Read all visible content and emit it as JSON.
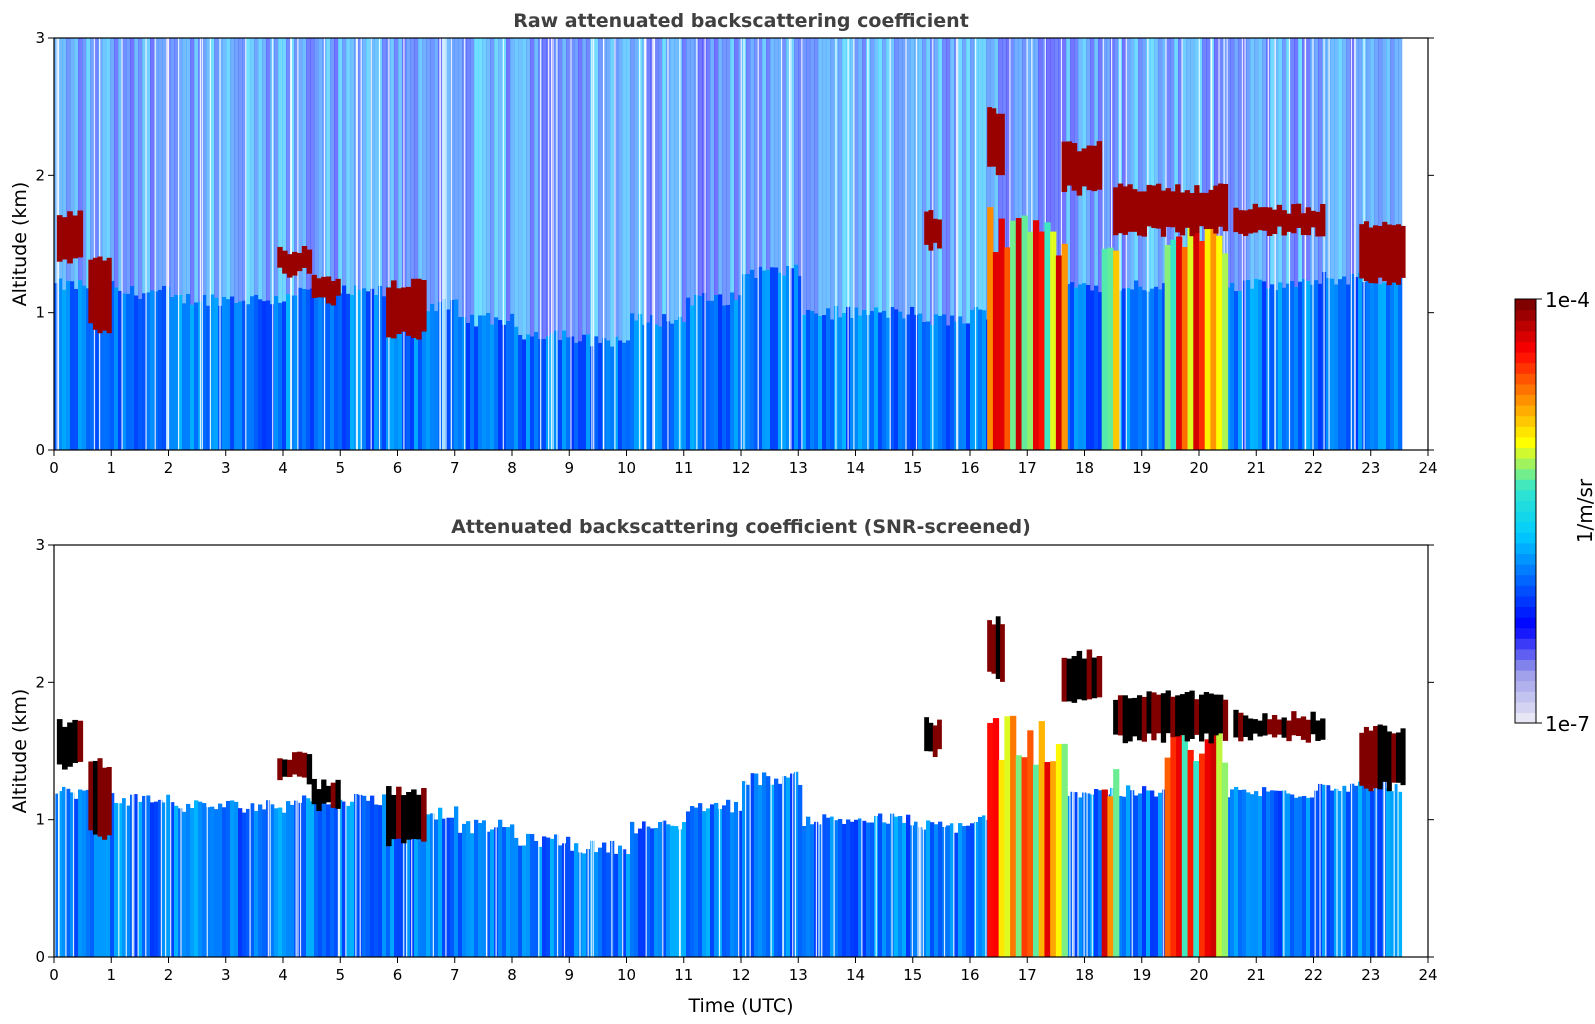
{
  "chart_data": [
    {
      "type": "heatmap",
      "title": "Raw attenuated backscattering coefficient",
      "xlabel": "",
      "ylabel": "Altitude (km)",
      "xlim": [
        0,
        24
      ],
      "ylim": [
        0,
        3
      ],
      "x_ticks": [
        "0",
        "1",
        "2",
        "3",
        "4",
        "5",
        "6",
        "7",
        "8",
        "9",
        "10",
        "11",
        "12",
        "13",
        "14",
        "15",
        "16",
        "17",
        "18",
        "19",
        "20",
        "21",
        "22",
        "23",
        "24"
      ],
      "y_ticks": [
        "0",
        "1",
        "2",
        "3"
      ],
      "data_end_hour": 23.6,
      "screened": false,
      "cloud_features": [
        {
          "t_start": 0.05,
          "t_end": 0.5,
          "alt_base": 1.35,
          "alt_top": 1.75
        },
        {
          "t_start": 0.6,
          "t_end": 1.0,
          "alt_base": 0.85,
          "alt_top": 1.45
        },
        {
          "t_start": 3.9,
          "t_end": 4.5,
          "alt_base": 1.25,
          "alt_top": 1.5
        },
        {
          "t_start": 4.5,
          "t_end": 5.0,
          "alt_base": 1.05,
          "alt_top": 1.3
        },
        {
          "t_start": 5.8,
          "t_end": 6.5,
          "alt_base": 0.8,
          "alt_top": 1.25
        },
        {
          "t_start": 15.2,
          "t_end": 15.5,
          "alt_base": 1.45,
          "alt_top": 1.75
        },
        {
          "t_start": 16.3,
          "t_end": 16.6,
          "alt_base": 2.0,
          "alt_top": 2.5
        },
        {
          "t_start": 17.6,
          "t_end": 18.3,
          "alt_base": 1.85,
          "alt_top": 2.25
        },
        {
          "t_start": 18.5,
          "t_end": 20.5,
          "alt_base": 1.55,
          "alt_top": 1.95
        },
        {
          "t_start": 20.6,
          "t_end": 22.2,
          "alt_base": 1.55,
          "alt_top": 1.8
        },
        {
          "t_start": 22.8,
          "t_end": 23.6,
          "alt_base": 1.2,
          "alt_top": 1.7
        }
      ],
      "precipitation_features": [
        {
          "t_start": 16.3,
          "t_end": 17.7,
          "alt_top": 1.8
        },
        {
          "t_start": 18.3,
          "t_end": 18.6,
          "alt_top": 1.5
        },
        {
          "t_start": 19.4,
          "t_end": 20.5,
          "alt_top": 1.8
        }
      ]
    },
    {
      "type": "heatmap",
      "title": "Attenuated backscattering coefficient (SNR-screened)",
      "xlabel": "Time (UTC)",
      "ylabel": "Altitude (km)",
      "xlim": [
        0,
        24
      ],
      "ylim": [
        0,
        3
      ],
      "x_ticks": [
        "0",
        "1",
        "2",
        "3",
        "4",
        "5",
        "6",
        "7",
        "8",
        "9",
        "10",
        "11",
        "12",
        "13",
        "14",
        "15",
        "16",
        "17",
        "18",
        "19",
        "20",
        "21",
        "22",
        "23",
        "24"
      ],
      "y_ticks": [
        "0",
        "1",
        "2",
        "3"
      ],
      "data_end_hour": 23.6,
      "screened": true,
      "boundary_layer_top_km": [
        1.2,
        1.15,
        1.1,
        1.1,
        1.15,
        1.15,
        1.05,
        0.95,
        0.85,
        0.8,
        0.95,
        1.1,
        1.3,
        1.0,
        1.0,
        0.95,
        1.0,
        1.2,
        1.2,
        1.2,
        1.2,
        1.2,
        1.25,
        1.25
      ]
    }
  ],
  "colorbar": {
    "label": "1/m/sr",
    "max_label": "1e-4",
    "min_label": "1e-7",
    "colormap": [
      "#e6e6f5",
      "#9a9aea",
      "#0000ff",
      "#0066ff",
      "#00ccff",
      "#33e6cc",
      "#ffff00",
      "#ff8800",
      "#ff0000",
      "#800000"
    ]
  }
}
